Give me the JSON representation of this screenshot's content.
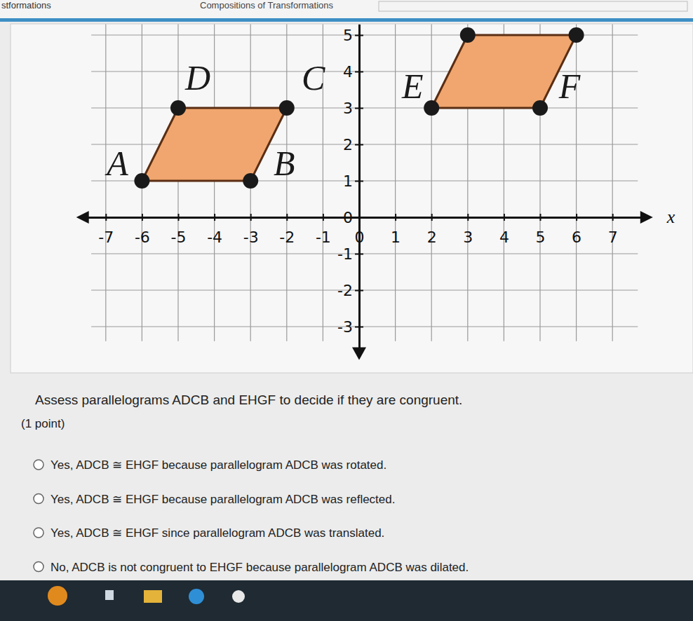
{
  "header": {
    "left": "stformations",
    "title": "Compositions of Transformations"
  },
  "chart_data": {
    "type": "polygon",
    "x_label": "x",
    "xlim": [
      -7.7,
      8
    ],
    "ylim": [
      -3.8,
      5.3
    ],
    "xticks": [
      -7,
      -6,
      -5,
      -4,
      -3,
      -2,
      -1,
      0,
      1,
      2,
      3,
      4,
      5,
      6,
      7
    ],
    "yticks": [
      -3,
      -2,
      -1,
      0,
      1,
      2,
      3,
      4,
      5
    ],
    "grid": true,
    "color": "#f0a66e",
    "polygons": [
      {
        "points": [
          {
            "label": "A",
            "x": -6,
            "y": 1
          },
          {
            "label": "D",
            "x": -5,
            "y": 3
          },
          {
            "label": "C",
            "x": -2,
            "y": 3
          },
          {
            "label": "B",
            "x": -3,
            "y": 1
          }
        ]
      },
      {
        "points": [
          {
            "label": "E",
            "x": 2,
            "y": 3
          },
          {
            "label": null,
            "x": 3,
            "y": 5
          },
          {
            "label": null,
            "x": 6,
            "y": 5
          },
          {
            "label": "F",
            "x": 5,
            "y": 3
          }
        ]
      }
    ]
  },
  "question": {
    "prompt": "Assess parallelograms ADCB and EHGF to decide if they are congruent.",
    "points": "(1 point)",
    "options": [
      "Yes, ADCB ≅ EHGF because parallelogram ADCB was rotated.",
      "Yes, ADCB ≅ EHGF because parallelogram ADCB was reflected.",
      "Yes, ADCB ≅ EHGF since parallelogram ADCB was translated.",
      "No, ADCB is not congruent to EHGF because parallelogram ADCB was dilated."
    ]
  }
}
